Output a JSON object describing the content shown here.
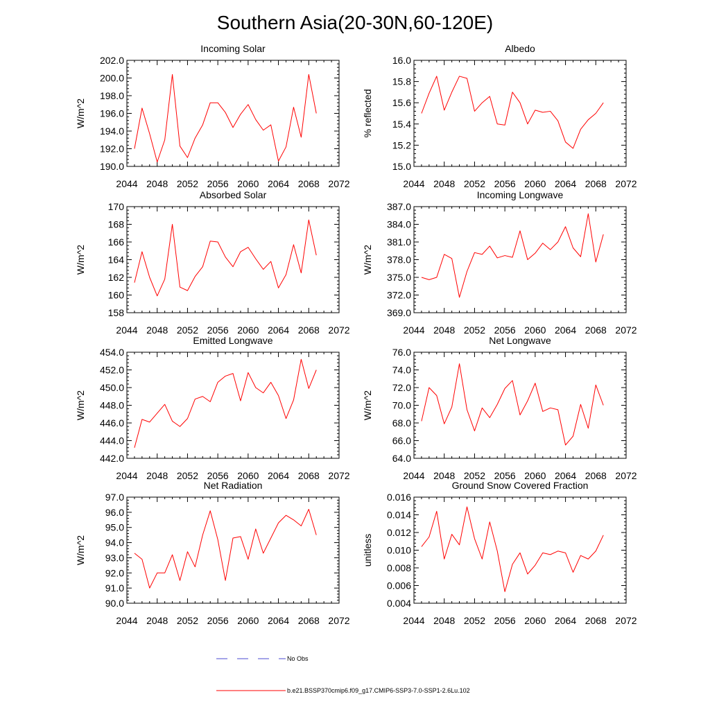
{
  "title": "Southern Asia(20-30N,60-120E)",
  "colors": {
    "model": "#ff0000",
    "obs": "#4a4ad0"
  },
  "legend": [
    {
      "label": "No Obs",
      "style": "dashed",
      "color": "#4a4ad0"
    },
    {
      "label": "b.e21.BSSP370cmip6.f09_g17.CMIP6-SSP3-7.0-SSP1-2.6Lu.102",
      "style": "solid",
      "color": "#ff0000"
    }
  ],
  "chart_data": [
    {
      "type": "line",
      "title": "Incoming Solar",
      "ylabel": "W/m^2",
      "xlim": [
        2044,
        2072
      ],
      "xticks": [
        2044,
        2048,
        2052,
        2056,
        2060,
        2064,
        2068,
        2072
      ],
      "ylim": [
        190,
        202
      ],
      "yticks": [
        190,
        192,
        194,
        196,
        198,
        200,
        202
      ],
      "ydec": 1,
      "x": [
        2045,
        2046,
        2047,
        2048,
        2049,
        2050,
        2051,
        2052,
        2053,
        2054,
        2055,
        2056,
        2057,
        2058,
        2059,
        2060,
        2061,
        2062,
        2063,
        2064,
        2065,
        2066,
        2067,
        2068,
        2069
      ],
      "series": [
        {
          "name": "b.e21.BSSP370cmip6.f09_g17.CMIP6-SSP3-7.0-SSP1-2.6Lu.102",
          "values": [
            192.0,
            196.6,
            193.7,
            190.5,
            193.0,
            200.4,
            192.3,
            191.0,
            193.2,
            194.7,
            197.2,
            197.2,
            196.1,
            194.4,
            195.9,
            197.0,
            195.3,
            194.1,
            194.7,
            190.6,
            192.2,
            196.7,
            193.3,
            200.4,
            196.0
          ]
        }
      ]
    },
    {
      "type": "line",
      "title": "Albedo",
      "ylabel": "% reflected",
      "xlim": [
        2044,
        2072
      ],
      "xticks": [
        2044,
        2048,
        2052,
        2056,
        2060,
        2064,
        2068,
        2072
      ],
      "ylim": [
        15.0,
        16.0
      ],
      "yticks": [
        15.0,
        15.2,
        15.4,
        15.6,
        15.8,
        16.0
      ],
      "ydec": 1,
      "x": [
        2045,
        2046,
        2047,
        2048,
        2049,
        2050,
        2051,
        2052,
        2053,
        2054,
        2055,
        2056,
        2057,
        2058,
        2059,
        2060,
        2061,
        2062,
        2063,
        2064,
        2065,
        2066,
        2067,
        2068,
        2069
      ],
      "series": [
        {
          "name": "b.e21.BSSP370cmip6.f09_g17.CMIP6-SSP3-7.0-SSP1-2.6Lu.102",
          "values": [
            15.5,
            15.69,
            15.85,
            15.53,
            15.7,
            15.85,
            15.83,
            15.52,
            15.6,
            15.66,
            15.4,
            15.39,
            15.7,
            15.6,
            15.4,
            15.53,
            15.51,
            15.52,
            15.43,
            15.23,
            15.17,
            15.35,
            15.44,
            15.5,
            15.6
          ]
        }
      ]
    },
    {
      "type": "line",
      "title": "Absorbed Solar",
      "ylabel": "W/m^2",
      "xlim": [
        2044,
        2072
      ],
      "xticks": [
        2044,
        2048,
        2052,
        2056,
        2060,
        2064,
        2068,
        2072
      ],
      "ylim": [
        158,
        170
      ],
      "yticks": [
        158,
        160,
        162,
        164,
        166,
        168,
        170
      ],
      "ydec": 0,
      "x": [
        2045,
        2046,
        2047,
        2048,
        2049,
        2050,
        2051,
        2052,
        2053,
        2054,
        2055,
        2056,
        2057,
        2058,
        2059,
        2060,
        2061,
        2062,
        2063,
        2064,
        2065,
        2066,
        2067,
        2068,
        2069
      ],
      "series": [
        {
          "name": "b.e21.BSSP370cmip6.f09_g17.CMIP6-SSP3-7.0-SSP1-2.6Lu.102",
          "values": [
            161.4,
            164.9,
            162.0,
            159.9,
            161.8,
            168.0,
            160.9,
            160.5,
            162.1,
            163.2,
            166.1,
            166.0,
            164.3,
            163.2,
            164.9,
            165.4,
            164.1,
            162.9,
            163.8,
            160.8,
            162.3,
            165.7,
            162.5,
            168.5,
            164.5
          ]
        }
      ]
    },
    {
      "type": "line",
      "title": "Incoming Longwave",
      "ylabel": "W/m^2",
      "xlim": [
        2044,
        2072
      ],
      "xticks": [
        2044,
        2048,
        2052,
        2056,
        2060,
        2064,
        2068,
        2072
      ],
      "ylim": [
        369,
        387
      ],
      "yticks": [
        369,
        372,
        375,
        378,
        381,
        384,
        387
      ],
      "ydec": 1,
      "x": [
        2045,
        2046,
        2047,
        2048,
        2049,
        2050,
        2051,
        2052,
        2053,
        2054,
        2055,
        2056,
        2057,
        2058,
        2059,
        2060,
        2061,
        2062,
        2063,
        2064,
        2065,
        2066,
        2067,
        2068,
        2069
      ],
      "series": [
        {
          "name": "b.e21.BSSP370cmip6.f09_g17.CMIP6-SSP3-7.0-SSP1-2.6Lu.102",
          "values": [
            375.0,
            374.6,
            375.0,
            378.9,
            378.2,
            371.6,
            376.0,
            379.2,
            378.9,
            380.3,
            378.3,
            378.7,
            378.4,
            382.9,
            378.0,
            379.1,
            380.8,
            379.7,
            381.0,
            383.6,
            380.0,
            378.5,
            385.8,
            377.6,
            382.3
          ]
        }
      ]
    },
    {
      "type": "line",
      "title": "Emitted Longwave",
      "ylabel": "W/m^2",
      "xlim": [
        2044,
        2072
      ],
      "xticks": [
        2044,
        2048,
        2052,
        2056,
        2060,
        2064,
        2068,
        2072
      ],
      "ylim": [
        442,
        454
      ],
      "yticks": [
        442,
        444,
        446,
        448,
        450,
        452,
        454
      ],
      "ydec": 1,
      "x": [
        2045,
        2046,
        2047,
        2048,
        2049,
        2050,
        2051,
        2052,
        2053,
        2054,
        2055,
        2056,
        2057,
        2058,
        2059,
        2060,
        2061,
        2062,
        2063,
        2064,
        2065,
        2066,
        2067,
        2068,
        2069
      ],
      "series": [
        {
          "name": "b.e21.BSSP370cmip6.f09_g17.CMIP6-SSP3-7.0-SSP1-2.6Lu.102",
          "values": [
            443.2,
            446.4,
            446.1,
            447.1,
            448.1,
            446.2,
            445.6,
            446.5,
            448.7,
            449.0,
            448.4,
            450.6,
            451.3,
            451.6,
            448.5,
            451.7,
            450.0,
            449.4,
            450.6,
            449.1,
            446.5,
            448.6,
            453.2,
            449.9,
            452.0
          ]
        }
      ]
    },
    {
      "type": "line",
      "title": "Net Longwave",
      "ylabel": "W/m^2",
      "xlim": [
        2044,
        2072
      ],
      "xticks": [
        2044,
        2048,
        2052,
        2056,
        2060,
        2064,
        2068,
        2072
      ],
      "ylim": [
        64,
        76
      ],
      "yticks": [
        64,
        66,
        68,
        70,
        72,
        74,
        76
      ],
      "ydec": 1,
      "x": [
        2045,
        2046,
        2047,
        2048,
        2049,
        2050,
        2051,
        2052,
        2053,
        2054,
        2055,
        2056,
        2057,
        2058,
        2059,
        2060,
        2061,
        2062,
        2063,
        2064,
        2065,
        2066,
        2067,
        2068,
        2069
      ],
      "series": [
        {
          "name": "b.e21.BSSP370cmip6.f09_g17.CMIP6-SSP3-7.0-SSP1-2.6Lu.102",
          "values": [
            68.2,
            72.0,
            71.1,
            67.9,
            69.8,
            74.7,
            69.5,
            67.1,
            69.7,
            68.6,
            70.1,
            71.9,
            72.8,
            68.9,
            70.5,
            72.5,
            69.3,
            69.7,
            69.5,
            65.5,
            66.5,
            70.1,
            67.4,
            72.3,
            70.0
          ]
        }
      ]
    },
    {
      "type": "line",
      "title": "Net Radiation",
      "ylabel": "W/m^2",
      "xlim": [
        2044,
        2072
      ],
      "xticks": [
        2044,
        2048,
        2052,
        2056,
        2060,
        2064,
        2068,
        2072
      ],
      "ylim": [
        90,
        97
      ],
      "yticks": [
        90,
        91,
        92,
        93,
        94,
        95,
        96,
        97
      ],
      "ydec": 1,
      "x": [
        2045,
        2046,
        2047,
        2048,
        2049,
        2050,
        2051,
        2052,
        2053,
        2054,
        2055,
        2056,
        2057,
        2058,
        2059,
        2060,
        2061,
        2062,
        2063,
        2064,
        2065,
        2066,
        2067,
        2068,
        2069
      ],
      "series": [
        {
          "name": "b.e21.BSSP370cmip6.f09_g17.CMIP6-SSP3-7.0-SSP1-2.6Lu.102",
          "values": [
            93.3,
            92.9,
            91.0,
            92.0,
            92.0,
            93.2,
            91.5,
            93.4,
            92.4,
            94.5,
            96.1,
            94.2,
            91.5,
            94.3,
            94.4,
            92.9,
            94.9,
            93.3,
            94.3,
            95.3,
            95.8,
            95.5,
            95.1,
            96.2,
            94.5
          ]
        }
      ]
    },
    {
      "type": "line",
      "title": "Ground Snow Covered Fraction",
      "ylabel": "unitless",
      "xlim": [
        2044,
        2072
      ],
      "xticks": [
        2044,
        2048,
        2052,
        2056,
        2060,
        2064,
        2068,
        2072
      ],
      "ylim": [
        0.004,
        0.016
      ],
      "yticks": [
        0.004,
        0.006,
        0.008,
        0.01,
        0.012,
        0.014,
        0.016
      ],
      "ydec": 3,
      "x": [
        2045,
        2046,
        2047,
        2048,
        2049,
        2050,
        2051,
        2052,
        2053,
        2054,
        2055,
        2056,
        2057,
        2058,
        2059,
        2060,
        2061,
        2062,
        2063,
        2064,
        2065,
        2066,
        2067,
        2068,
        2069
      ],
      "series": [
        {
          "name": "b.e21.BSSP370cmip6.f09_g17.CMIP6-SSP3-7.0-SSP1-2.6Lu.102",
          "values": [
            0.0104,
            0.0115,
            0.0144,
            0.009,
            0.0118,
            0.0106,
            0.0149,
            0.0113,
            0.009,
            0.0132,
            0.0099,
            0.0053,
            0.0084,
            0.0097,
            0.0073,
            0.0083,
            0.0097,
            0.0095,
            0.0099,
            0.0097,
            0.0075,
            0.0094,
            0.009,
            0.0099,
            0.0117
          ]
        }
      ]
    }
  ]
}
